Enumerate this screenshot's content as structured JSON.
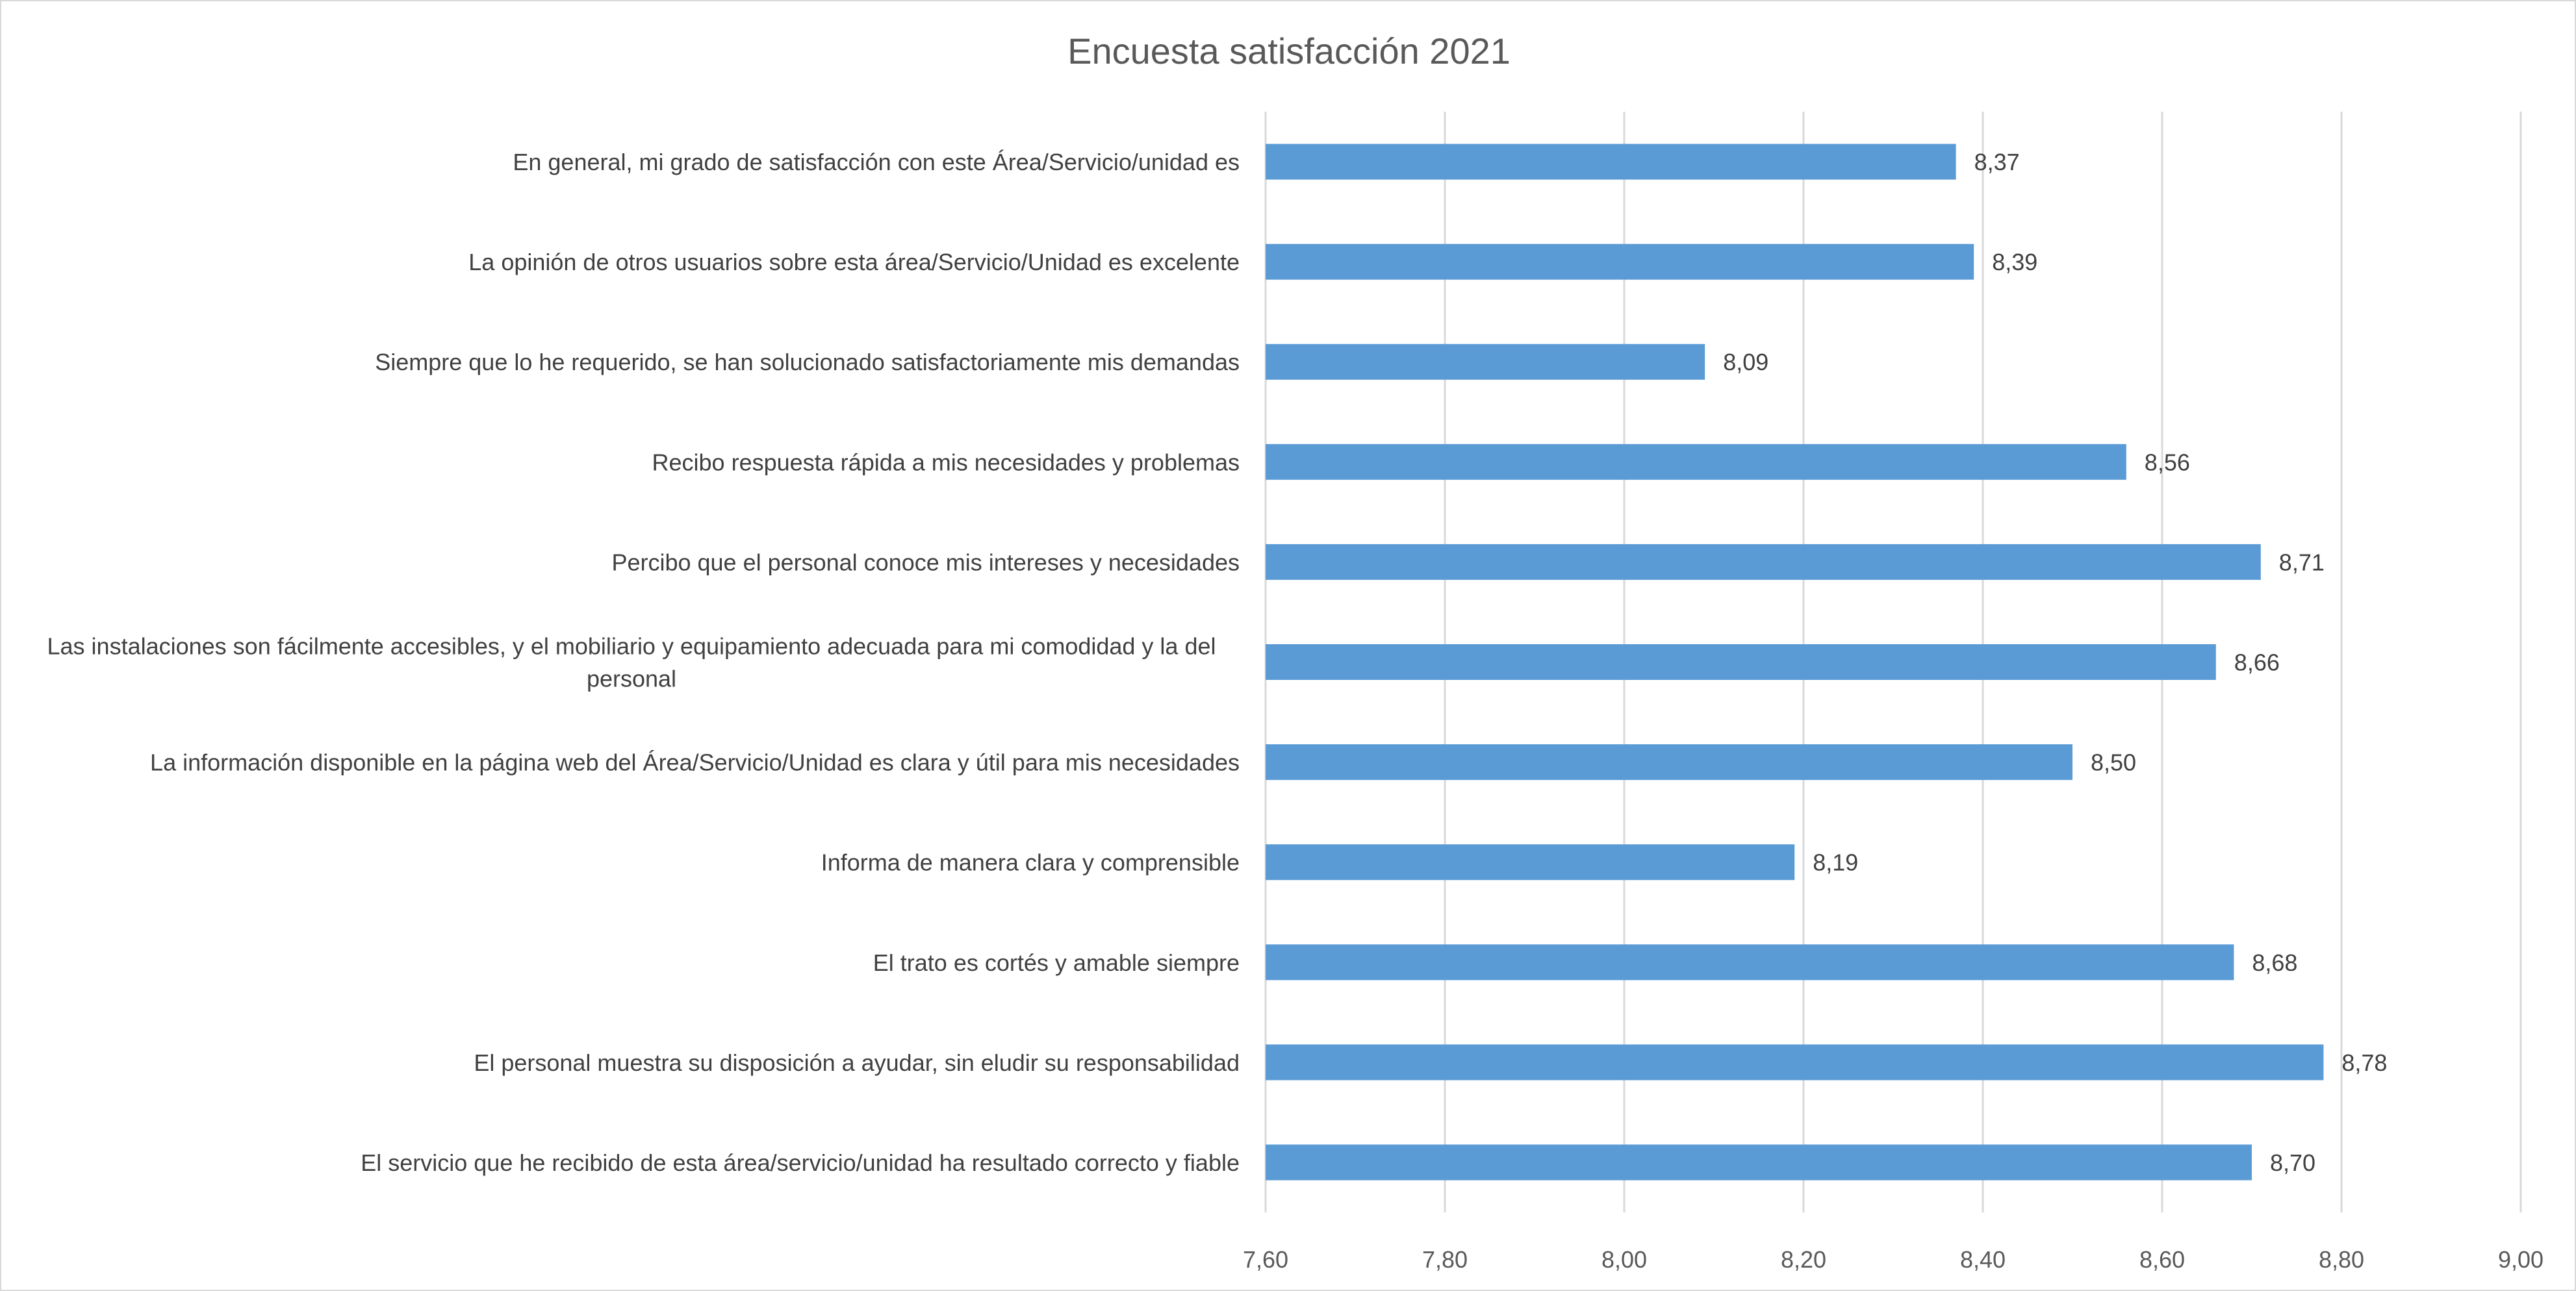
{
  "chart_data": {
    "type": "bar",
    "orientation": "horizontal",
    "title": "Encuesta satisfacción 2021",
    "xlabel": "",
    "ylabel": "",
    "xlim": [
      7.6,
      9.0
    ],
    "tick_values": [
      7.6,
      7.8,
      8.0,
      8.2,
      8.4,
      8.6,
      8.8,
      9.0
    ],
    "tick_labels": [
      "7,60",
      "7,80",
      "8,00",
      "8,20",
      "8,40",
      "8,60",
      "8,80",
      "9,00"
    ],
    "grid": true,
    "legend": "none",
    "bar_color": "#5b9bd5",
    "categories": [
      [
        "En general, mi grado de satisfacción con este Área/Servicio/unidad es"
      ],
      [
        "La opinión de otros usuarios sobre esta área/Servicio/Unidad es excelente"
      ],
      [
        "Siempre que lo he requerido, se han solucionado satisfactoriamente mis demandas"
      ],
      [
        "Recibo respuesta rápida a mis necesidades y problemas"
      ],
      [
        "Percibo que el personal conoce mis intereses y necesidades"
      ],
      [
        "Las instalaciones son fácilmente accesibles, y el mobiliario y equipamiento adecuada para mi comodidad y la del",
        "personal"
      ],
      [
        "La información disponible en la página web del Área/Servicio/Unidad es clara y útil para mis necesidades"
      ],
      [
        "Informa de manera clara y comprensible"
      ],
      [
        "El trato es cortés y amable siempre"
      ],
      [
        "El personal muestra su disposición a ayudar, sin eludir su responsabilidad"
      ],
      [
        "El servicio que he recibido de esta área/servicio/unidad ha resultado correcto y fiable"
      ]
    ],
    "values": [
      8.37,
      8.39,
      8.09,
      8.56,
      8.71,
      8.66,
      8.5,
      8.19,
      8.68,
      8.78,
      8.7
    ],
    "value_labels": [
      "8,37",
      "8,39",
      "8,09",
      "8,56",
      "8,71",
      "8,66",
      "8,50",
      "8,19",
      "8,68",
      "8,78",
      "8,70"
    ]
  }
}
